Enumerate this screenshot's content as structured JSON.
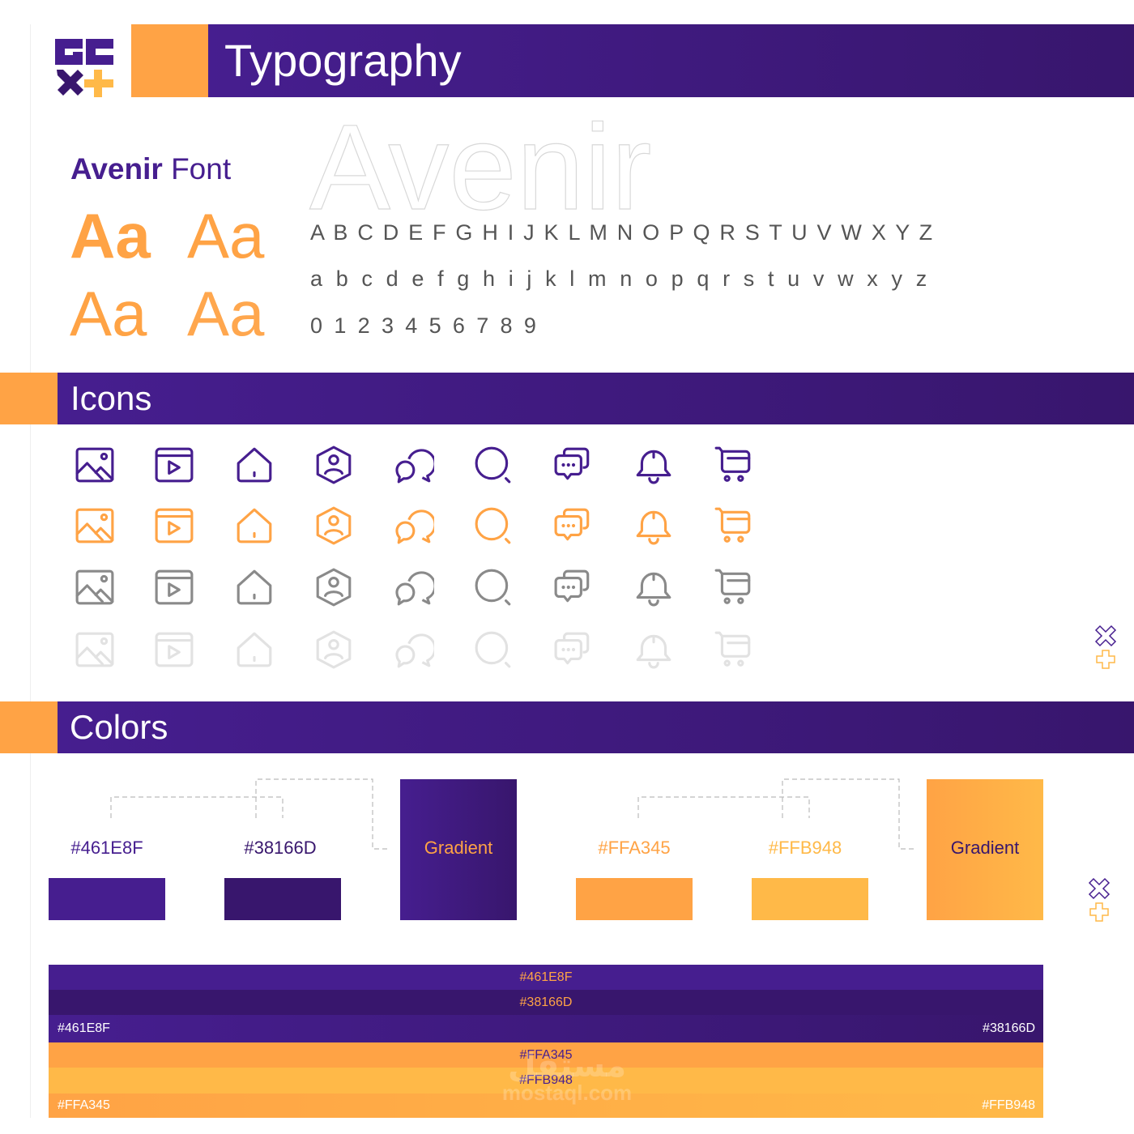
{
  "typography": {
    "title": "Typography",
    "font_name_bold": "Avenir",
    "font_name_rest": " Font",
    "sample": "Aa",
    "display_word": "Avenir",
    "uppercase": "A B C D E F G H I J K L M N O P Q R S T U V W X Y Z",
    "lowercase": "a b c d e f g h i j k l m n o p q r s t u v w x y z",
    "digits": "0 1 2 3 4 5 6 7 8 9"
  },
  "icons": {
    "title": "Icons",
    "names": [
      "image-icon",
      "video-player-icon",
      "home-icon",
      "user-profile-icon",
      "chat-bubbles-icon",
      "search-icon",
      "messages-icon",
      "bell-icon",
      "cart-icon"
    ],
    "row_colors": [
      "#461E8F",
      "#FFA345",
      "#8A8A8A",
      "#E2E2E2"
    ]
  },
  "colors": {
    "title": "Colors",
    "swatches": [
      {
        "label": "#461E8F",
        "color": "#461E8F"
      },
      {
        "label": "#38166D",
        "color": "#38166D"
      },
      {
        "label": "Gradient",
        "from": "#461E8F",
        "to": "#38166D"
      },
      {
        "label": "#FFA345",
        "color": "#FFA345"
      },
      {
        "label": "#FFB948",
        "color": "#FFB948"
      },
      {
        "label": "Gradient",
        "from": "#FFA345",
        "to": "#FFB948"
      }
    ],
    "stripes": {
      "s1": "#461E8F",
      "s2": "#38166D",
      "s3_left": "#461E8F",
      "s3_right": "#38166D",
      "s4": "#FFA345",
      "s5": "#FFB948",
      "s6_left": "#FFA345",
      "s6_right": "#FFB948"
    }
  },
  "brand": {
    "accent_purple": "#461E8F",
    "dark_purple": "#38166D",
    "accent_orange": "#FFA345",
    "light_orange": "#FFB948"
  },
  "watermark": {
    "arabic": "مستقل",
    "latin": "mostaql.com"
  }
}
